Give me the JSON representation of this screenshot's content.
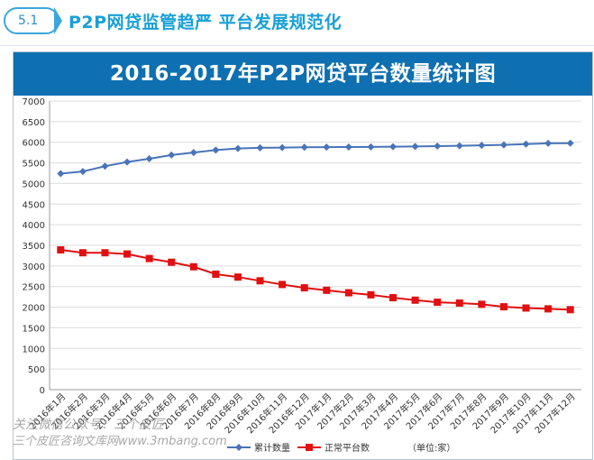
{
  "header": {
    "badge": "5.1",
    "title": "P2P网贷监管趋严  平台发展规范化"
  },
  "watermark": {
    "line1": "关注微信公众号：三个皮匠",
    "line2": "三个皮匠咨询文库网www.3mbang.com"
  },
  "colors": {
    "accent": "#0e6fb1",
    "series_cumulative": "#4a74b8",
    "series_normal": "#e10f0f"
  },
  "chart_data": {
    "type": "line",
    "title": "2016-2017年P2P网贷平台数量统计图",
    "unit_note": "（单位:家）",
    "ylim": [
      0,
      7000
    ],
    "yticks": [
      "0",
      "500",
      "1000",
      "1500",
      "2000",
      "2500",
      "3000",
      "3500",
      "4000",
      "4500",
      "5000",
      "5500",
      "6000",
      "6500",
      "7000"
    ],
    "grid": true,
    "legend_position": "bottom-center",
    "categories": [
      "2016年1月",
      "2016年2月",
      "2016年3月",
      "2016年4月",
      "2016年5月",
      "2016年6月",
      "2016年7月",
      "2016年8月",
      "2016年9月",
      "2016年10月",
      "2016年11月",
      "2016年12月",
      "2017年1月",
      "2017年2月",
      "2017年3月",
      "2017年4月",
      "2017年5月",
      "2017年6月",
      "2017年7月",
      "2017年8月",
      "2017年9月",
      "2017年10月",
      "2017年11月",
      "2017年12月"
    ],
    "series": [
      {
        "name": "累计数量",
        "marker": "diamond",
        "values": [
          5240,
          5290,
          5420,
          5520,
          5600,
          5690,
          5750,
          5810,
          5850,
          5865,
          5870,
          5878,
          5882,
          5885,
          5888,
          5892,
          5898,
          5905,
          5915,
          5925,
          5935,
          5955,
          5975,
          5978
        ]
      },
      {
        "name": "正常平台数",
        "marker": "square",
        "values": [
          3390,
          3320,
          3320,
          3290,
          3180,
          3090,
          2980,
          2800,
          2730,
          2640,
          2550,
          2470,
          2410,
          2350,
          2300,
          2230,
          2170,
          2120,
          2100,
          2070,
          2010,
          1980,
          1960,
          1940
        ]
      }
    ]
  }
}
